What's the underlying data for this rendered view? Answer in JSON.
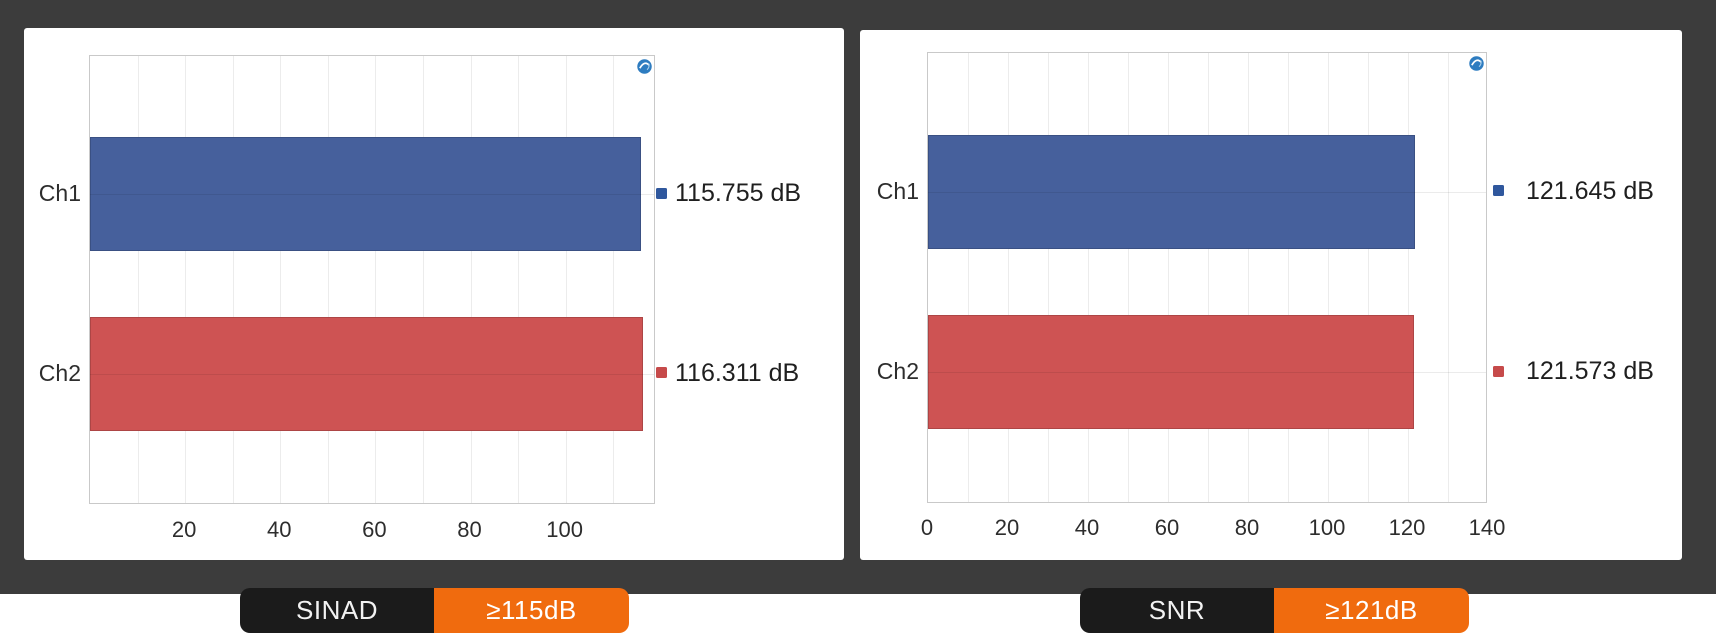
{
  "page": {
    "backdrop_color": "#3C3C3C",
    "page_background": "#FFFFFF"
  },
  "chart_data": [
    {
      "type": "bar",
      "orientation": "horizontal",
      "categories": [
        "Ch1",
        "Ch2"
      ],
      "values": [
        115.755,
        116.311
      ],
      "value_labels": [
        "115.755 dB",
        "116.311 dB"
      ],
      "unit": "dB",
      "xlim": [
        0,
        119
      ],
      "x_ticks": [
        20,
        40,
        60,
        80,
        100
      ],
      "minor_grid_step": 10,
      "grid": true,
      "legend_position": "right-of-plot",
      "bar_colors": [
        "#46609C",
        "#CE5353"
      ],
      "marker_colors": [
        "#2F579D",
        "#C64A4A"
      ],
      "badge_label": "SINAD",
      "spec_label": "≥115dB",
      "logo": "audio-precision-logo"
    },
    {
      "type": "bar",
      "orientation": "horizontal",
      "categories": [
        "Ch1",
        "Ch2"
      ],
      "values": [
        121.645,
        121.573
      ],
      "value_labels": [
        "121.645 dB",
        "121.573 dB"
      ],
      "unit": "dB",
      "xlim": [
        0,
        140
      ],
      "x_ticks": [
        0,
        20,
        40,
        60,
        80,
        100,
        120,
        140
      ],
      "minor_grid_step": 10,
      "grid": true,
      "legend_position": "right-of-plot",
      "bar_colors": [
        "#46609C",
        "#CE5353"
      ],
      "marker_colors": [
        "#2F579D",
        "#C64A4A"
      ],
      "badge_label": "SNR",
      "spec_label": "≥121dB",
      "logo": "audio-precision-logo"
    }
  ],
  "badges": {
    "label_bg": "#1B1B1B",
    "spec_bg": "#F06B0E",
    "text_color": "#F2F2F2"
  }
}
